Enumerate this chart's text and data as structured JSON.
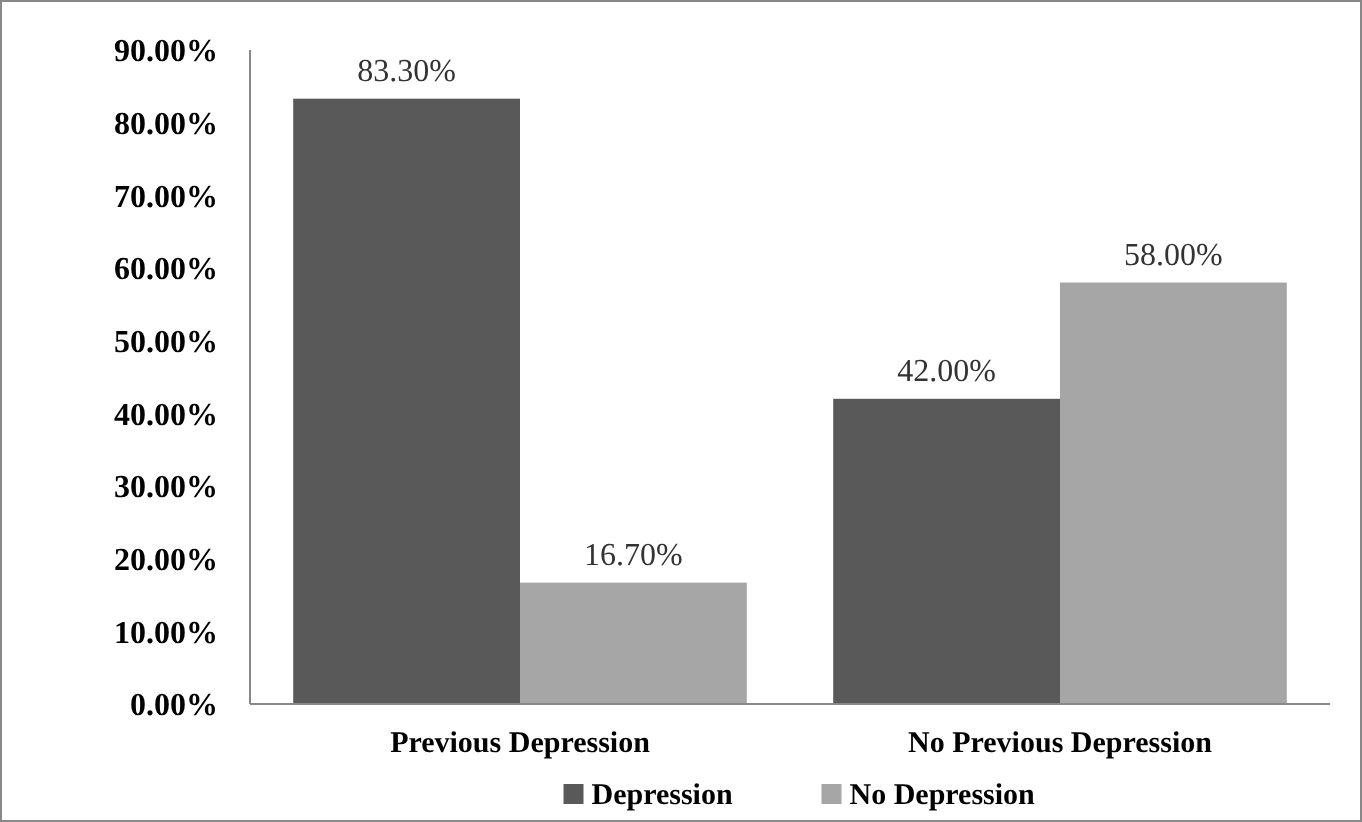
{
  "chart_data": {
    "type": "bar",
    "categories": [
      "Previous Depression",
      "No Previous Depression"
    ],
    "series": [
      {
        "name": "Depression",
        "color": "#595959",
        "values": [
          83.3,
          42.0
        ],
        "value_labels": [
          "83.30%",
          "42.00%"
        ]
      },
      {
        "name": "No Depression",
        "color": "#a6a6a6",
        "values": [
          16.7,
          58.0
        ],
        "value_labels": [
          "16.70%",
          "58.00%"
        ]
      }
    ],
    "ylim": [
      0,
      90
    ],
    "yticks": [
      {
        "value": 0,
        "label": "0.00%"
      },
      {
        "value": 10,
        "label": "10.00%"
      },
      {
        "value": 20,
        "label": "20.00%"
      },
      {
        "value": 30,
        "label": "30.00%"
      },
      {
        "value": 40,
        "label": "40.00%"
      },
      {
        "value": 50,
        "label": "50.00%"
      },
      {
        "value": 60,
        "label": "60.00%"
      },
      {
        "value": 70,
        "label": "70.00%"
      },
      {
        "value": 80,
        "label": "80.00%"
      },
      {
        "value": 90,
        "label": "90.00%"
      }
    ],
    "grid": false,
    "legend": "bottom"
  }
}
